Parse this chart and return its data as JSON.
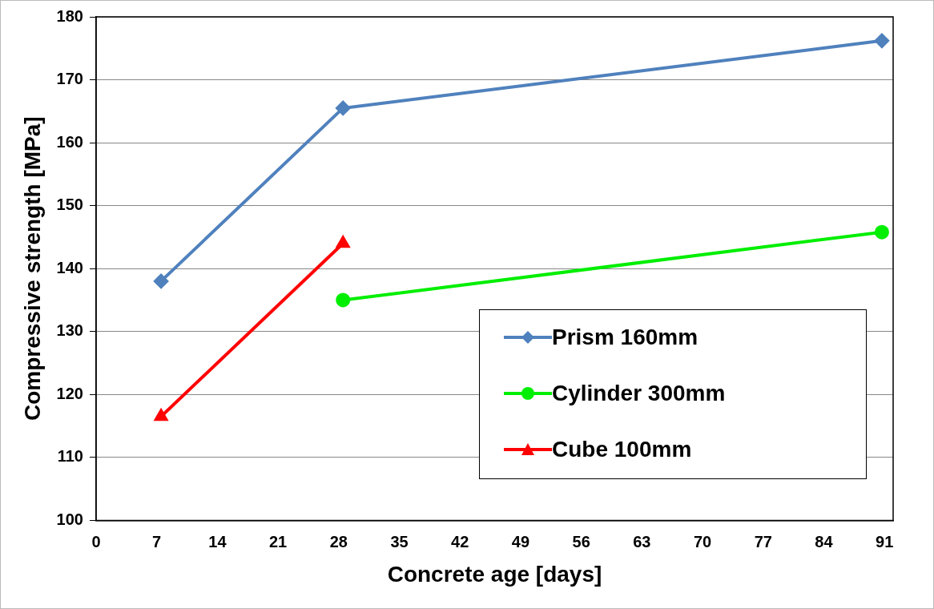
{
  "chart_data": {
    "type": "line",
    "xlabel": "Concrete age [days]",
    "ylabel": "Compressive strength [MPa]",
    "xlim": [
      0,
      92
    ],
    "xticks": [
      0,
      7,
      14,
      21,
      28,
      35,
      42,
      49,
      56,
      63,
      70,
      77,
      84,
      91
    ],
    "ylim": [
      100,
      180
    ],
    "yticks": [
      100,
      110,
      120,
      130,
      140,
      150,
      160,
      170,
      180
    ],
    "grid": "y",
    "legend": "bottom right",
    "line_style": "solid",
    "series": [
      {
        "name": "Prism 160mm",
        "color": "#4f81bd",
        "marker": "diamond",
        "x": [
          7.5,
          28.5,
          90.7
        ],
        "values": [
          138,
          165.5,
          176.2
        ]
      },
      {
        "name": "Cylinder 300mm",
        "color": "#00ee00",
        "marker": "circle",
        "x": [
          28.5,
          90.7
        ],
        "values": [
          135,
          145.8
        ]
      },
      {
        "name": "Cube 100mm",
        "color": "#ff0000",
        "marker": "triangle",
        "x": [
          7.5,
          28.5
        ],
        "values": [
          116.5,
          144
        ]
      }
    ]
  }
}
